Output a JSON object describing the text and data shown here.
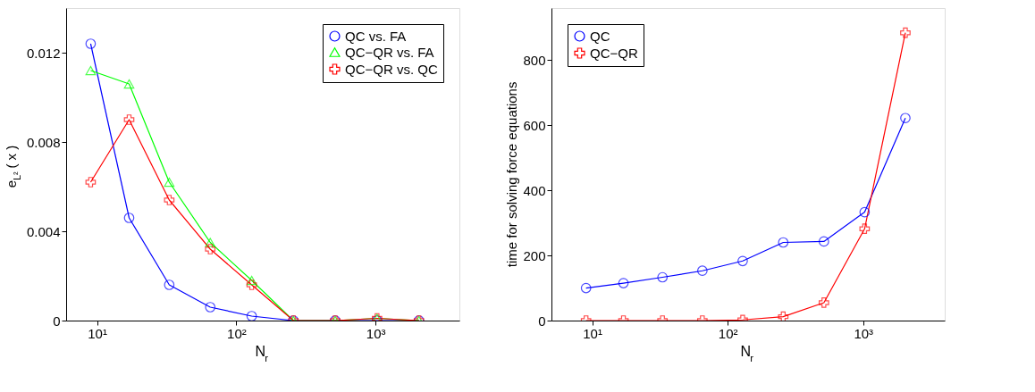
{
  "chart_data": [
    {
      "type": "line",
      "xlabel": "N$_{r}$",
      "ylabel": "e$_{L²}$ ( x )",
      "log": "x",
      "grid": false,
      "legend": "top right",
      "xlim": [
        6,
        4000
      ],
      "xticks": [
        {
          "value": 10,
          "label": "10¹"
        },
        {
          "value": 100,
          "label": "10²"
        },
        {
          "value": 1000,
          "label": "10³"
        }
      ],
      "ylim": [
        0,
        0.014
      ],
      "yticks": [
        0,
        0.004,
        0.008,
        0.012
      ],
      "x": [
        9,
        17,
        33,
        65,
        129,
        257,
        513,
        1025,
        2049
      ],
      "series": [
        {
          "name": "QC vs. FA",
          "color": "#0000ff",
          "marker": "circle",
          "values": [
            0.0124,
            0.0046,
            0.0016,
            0.0006,
            0.0002,
            0,
            0,
            0,
            0
          ]
        },
        {
          "name": "QC−QR vs. FA",
          "color": "#00ff00",
          "marker": "triangle",
          "values": [
            0.0112,
            0.0106,
            0.0062,
            0.0035,
            0.0018,
            0,
            0,
            0.0001,
            0
          ]
        },
        {
          "name": "QC−QR vs. QC",
          "color": "#ff0000",
          "marker": "cross",
          "values": [
            0.0062,
            0.009,
            0.0054,
            0.0032,
            0.0016,
            0,
            0,
            0.0001,
            0
          ]
        }
      ]
    },
    {
      "type": "line",
      "xlabel": "N$_{r}$",
      "ylabel": "time for solving force equations",
      "log": "x",
      "grid": false,
      "legend": "top left",
      "xlim": [
        5,
        4000
      ],
      "xticks": [
        {
          "value": 10,
          "label": "10¹"
        },
        {
          "value": 100,
          "label": "10²"
        },
        {
          "value": 1000,
          "label": "10³"
        }
      ],
      "ylim": [
        0,
        960
      ],
      "yticks": [
        0,
        200,
        400,
        600,
        800
      ],
      "x": [
        9,
        17,
        33,
        65,
        129,
        257,
        513,
        1025,
        2049
      ],
      "series": [
        {
          "name": "QC",
          "color": "#0000ff",
          "marker": "circle",
          "values": [
            100,
            115,
            133,
            153,
            183,
            240,
            243,
            333,
            622
          ]
        },
        {
          "name": "QC−QR",
          "color": "#ff0000",
          "marker": "cross",
          "values": [
            0,
            0,
            0,
            0,
            2,
            12,
            55,
            282,
            884
          ]
        }
      ]
    }
  ]
}
